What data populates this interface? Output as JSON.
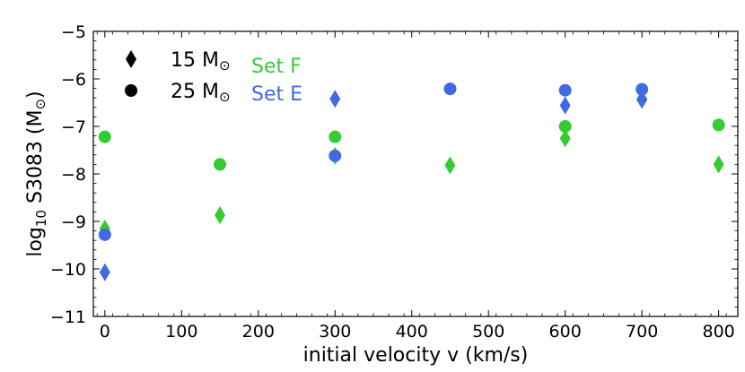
{
  "chart_data": {
    "type": "scatter",
    "title": "",
    "xlabel": "initial velocity v (km/s)",
    "ylabel_prefix": "log",
    "ylabel_sub": "10",
    "ylabel_main": " S3083 (M",
    "ylabel_sun": "⊙",
    "ylabel_end": ")",
    "xlim": [
      -15,
      825
    ],
    "ylim": [
      -11,
      -5
    ],
    "xticks": [
      0,
      100,
      200,
      300,
      400,
      500,
      600,
      700,
      800
    ],
    "yticks": [
      -11,
      -10,
      -9,
      -8,
      -7,
      -6,
      -5
    ],
    "xtick_labels": [
      "0",
      "100",
      "200",
      "300",
      "400",
      "500",
      "600",
      "700",
      "800"
    ],
    "ytick_labels": [
      "−11",
      "−10",
      "−9",
      "−8",
      "−7",
      "−6",
      "−5"
    ],
    "grid": false,
    "legend": {
      "placement": "top-left",
      "markers": [
        {
          "shape": "diamond",
          "label_mass": "15 M",
          "label_sun": "⊙"
        },
        {
          "shape": "circle",
          "label_mass": "25 M",
          "label_sun": "⊙"
        }
      ],
      "sets": [
        {
          "label": "Set F",
          "color": "#33cc33"
        },
        {
          "label": "Set E",
          "color": "#4169e1"
        }
      ]
    },
    "series": [
      {
        "name": "Set F 15 Msun",
        "set": "F",
        "marker": "diamond",
        "color": "#33cc33",
        "points": [
          [
            0,
            -9.15
          ],
          [
            150,
            -8.87
          ],
          [
            300,
            -7.62
          ],
          [
            450,
            -7.82
          ],
          [
            600,
            -7.25
          ],
          [
            700,
            -6.42
          ],
          [
            800,
            -7.8
          ]
        ]
      },
      {
        "name": "Set F 25 Msun",
        "set": "F",
        "marker": "circle",
        "color": "#33cc33",
        "points": [
          [
            0,
            -7.22
          ],
          [
            150,
            -7.8
          ],
          [
            300,
            -7.22
          ],
          [
            600,
            -7.0
          ],
          [
            800,
            -6.97
          ]
        ]
      },
      {
        "name": "Set E 15 Msun",
        "set": "E",
        "marker": "diamond",
        "color": "#4169e1",
        "points": [
          [
            0,
            -10.07
          ],
          [
            300,
            -6.42
          ],
          [
            600,
            -6.56
          ],
          [
            700,
            -6.44
          ]
        ]
      },
      {
        "name": "Set E 25 Msun",
        "set": "E",
        "marker": "circle",
        "color": "#4169e1",
        "points": [
          [
            0,
            -9.28
          ],
          [
            300,
            -7.62
          ],
          [
            450,
            -6.21
          ],
          [
            600,
            -6.24
          ],
          [
            700,
            -6.22
          ]
        ]
      }
    ]
  }
}
